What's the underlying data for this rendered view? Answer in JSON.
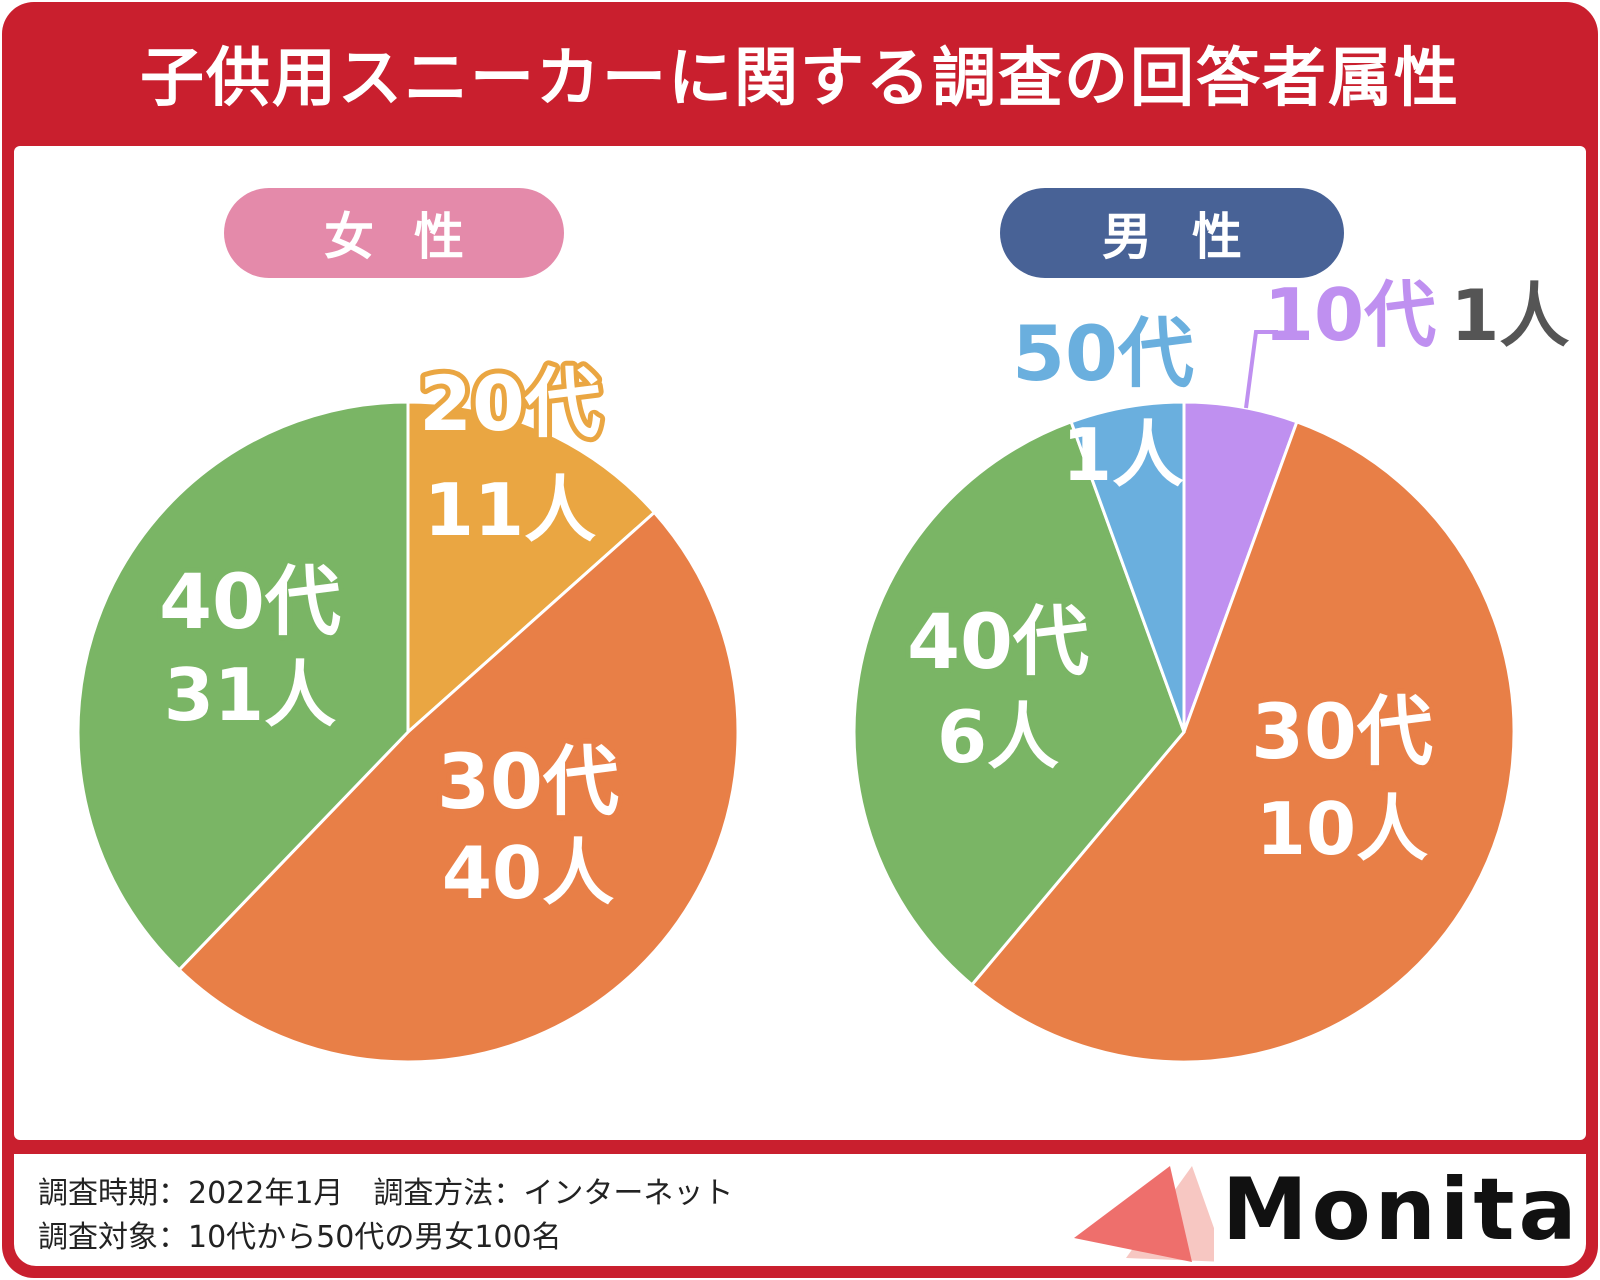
{
  "title": "子供用スニーカーに関する調査の回答者属性",
  "colors": {
    "frame": "#c91f2e",
    "female_pill": "#e48aaa",
    "male_pill": "#486296",
    "teens": "#bf90f0",
    "twenties": "#eaa642",
    "thirties": "#e87f47",
    "forties": "#7ab565",
    "fifties": "#6aafde"
  },
  "chart_data": [
    {
      "type": "pie",
      "title": "女性",
      "unit": "人",
      "slices": [
        {
          "label": "20代",
          "value": 11,
          "value_text": "11人",
          "color": "#eaa642"
        },
        {
          "label": "30代",
          "value": 40,
          "value_text": "40人",
          "color": "#e87f47"
        },
        {
          "label": "40代",
          "value": 31,
          "value_text": "31人",
          "color": "#7ab565"
        }
      ]
    },
    {
      "type": "pie",
      "title": "男性",
      "unit": "人",
      "slices": [
        {
          "label": "10代",
          "value": 1,
          "value_text": "1人",
          "color": "#bf90f0"
        },
        {
          "label": "30代",
          "value": 10,
          "value_text": "10人",
          "color": "#e87f47"
        },
        {
          "label": "40代",
          "value": 6,
          "value_text": "6人",
          "color": "#7ab565"
        },
        {
          "label": "50代",
          "value": 1,
          "value_text": "1人",
          "color": "#6aafde"
        }
      ]
    }
  ],
  "footer": {
    "line1": "調査時期：2022年1月　調査方法：インターネット",
    "line2": "調査対象：10代から50代の男女100名"
  },
  "logo": {
    "text": "Monita",
    "icon": "triangle-logo-icon"
  }
}
